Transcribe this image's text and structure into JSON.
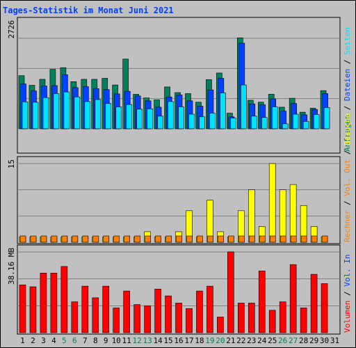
{
  "title": "Tages-Statistik im Monat Juni 2021",
  "colors": {
    "anfragen": "#00805c",
    "dateien": "#0040ff",
    "seiten": "#00e0ff",
    "besuche": "#ffff00",
    "rechner": "#ff8000",
    "volumen": "#ff0000",
    "weekend_day": "#00805c",
    "weekday": "#000000",
    "title": "#0040ff",
    "frame": "#000000"
  },
  "chart_data": [
    {
      "type": "bar",
      "panel": "top",
      "y_max_label": "2726",
      "ylim": [
        0,
        2726
      ],
      "grid": true,
      "side_legend": [
        {
          "label": "Anfragen",
          "color_key": "anfragen"
        },
        {
          "label": "Dateien",
          "color_key": "dateien"
        },
        {
          "label": "Seiten",
          "color_key": "seiten"
        }
      ],
      "categories": [
        "1",
        "2",
        "3",
        "4",
        "5",
        "6",
        "7",
        "8",
        "9",
        "10",
        "11",
        "12",
        "13",
        "14",
        "15",
        "16",
        "17",
        "18",
        "19",
        "20",
        "21",
        "22",
        "23",
        "24",
        "25",
        "26",
        "27",
        "28",
        "29",
        "30"
      ],
      "series": [
        {
          "name": "Anfragen",
          "values": [
            1600,
            1310,
            1490,
            1790,
            1840,
            1420,
            1490,
            1490,
            1520,
            1320,
            2100,
            1040,
            930,
            870,
            1260,
            1090,
            1060,
            800,
            1480,
            1680,
            470,
            2740,
            860,
            800,
            1040,
            650,
            920,
            500,
            620,
            1150
          ]
        },
        {
          "name": "Dateien",
          "values": [
            1350,
            1140,
            1290,
            1300,
            1630,
            1240,
            1270,
            1210,
            1180,
            1050,
            1130,
            990,
            840,
            650,
            960,
            1020,
            840,
            680,
            1170,
            1520,
            360,
            2580,
            750,
            720,
            900,
            530,
            760,
            420,
            580,
            1060
          ]
        },
        {
          "name": "Seiten",
          "values": [
            810,
            800,
            940,
            1060,
            1110,
            960,
            820,
            880,
            760,
            660,
            730,
            590,
            600,
            380,
            820,
            660,
            440,
            360,
            470,
            1080,
            320,
            1320,
            380,
            340,
            660,
            150,
            440,
            220,
            430,
            640
          ]
        }
      ]
    },
    {
      "type": "bar",
      "panel": "middle",
      "y_max_label": "15",
      "ylim": [
        0,
        15
      ],
      "grid": true,
      "side_legend": [
        {
          "label": "Rechner",
          "color_key": "rechner"
        },
        {
          "label": "Vol. Out",
          "color_key": "rechner"
        },
        {
          "label": "Besuche",
          "color_key": "besuche"
        }
      ],
      "categories": [
        "1",
        "2",
        "3",
        "4",
        "5",
        "6",
        "7",
        "8",
        "9",
        "10",
        "11",
        "12",
        "13",
        "14",
        "15",
        "16",
        "17",
        "18",
        "19",
        "20",
        "21",
        "22",
        "23",
        "24",
        "25",
        "26",
        "27",
        "28",
        "29",
        "30"
      ],
      "series": [
        {
          "name": "Besuche",
          "values": [
            1,
            1,
            1,
            1,
            1,
            1,
            1,
            1,
            1,
            1,
            1,
            1,
            2,
            1,
            1,
            2,
            6,
            1,
            8,
            2,
            1,
            6,
            10,
            3,
            15,
            10,
            11,
            7,
            3,
            1
          ]
        },
        {
          "name": "Rechner",
          "values": [
            1,
            1,
            1,
            1,
            1,
            1,
            1,
            1,
            1,
            1,
            1,
            1,
            1,
            1,
            1,
            1,
            1,
            1,
            1,
            1,
            1,
            1,
            1,
            1,
            1,
            1,
            1,
            1,
            1,
            1
          ]
        }
      ]
    },
    {
      "type": "bar",
      "panel": "bottom",
      "y_max_label": "38.16 MB",
      "ylim": [
        0,
        38.16
      ],
      "grid": true,
      "side_legend": [
        {
          "label": "Volumen",
          "color_key": "volumen"
        },
        {
          "label": "Vol. In",
          "color_key": "dateien"
        }
      ],
      "categories": [
        "1",
        "2",
        "3",
        "4",
        "5",
        "6",
        "7",
        "8",
        "9",
        "10",
        "11",
        "12",
        "13",
        "14",
        "15",
        "16",
        "17",
        "18",
        "19",
        "20",
        "21",
        "22",
        "23",
        "24",
        "25",
        "26",
        "27",
        "28",
        "29",
        "30"
      ],
      "series": [
        {
          "name": "Volumen",
          "values": [
            22.6,
            21.7,
            28.2,
            28.2,
            31.3,
            14.6,
            22.0,
            16.5,
            22.0,
            11.7,
            19.7,
            13.3,
            12.7,
            20.6,
            17.4,
            14.0,
            11.4,
            19.7,
            22.0,
            7.4,
            38.2,
            14.0,
            14.0,
            29.2,
            10.6,
            14.6,
            32.2,
            11.7,
            27.6,
            23.2
          ]
        }
      ]
    }
  ],
  "x_axis": {
    "days": [
      "1",
      "2",
      "3",
      "4",
      "5",
      "6",
      "7",
      "8",
      "9",
      "10",
      "11",
      "12",
      "13",
      "14",
      "15",
      "16",
      "17",
      "18",
      "19",
      "20",
      "21",
      "22",
      "23",
      "24",
      "25",
      "26",
      "27",
      "28",
      "29",
      "30",
      "31"
    ],
    "weekend_days": [
      "5",
      "6",
      "12",
      "13",
      "19",
      "20",
      "26",
      "27"
    ]
  }
}
